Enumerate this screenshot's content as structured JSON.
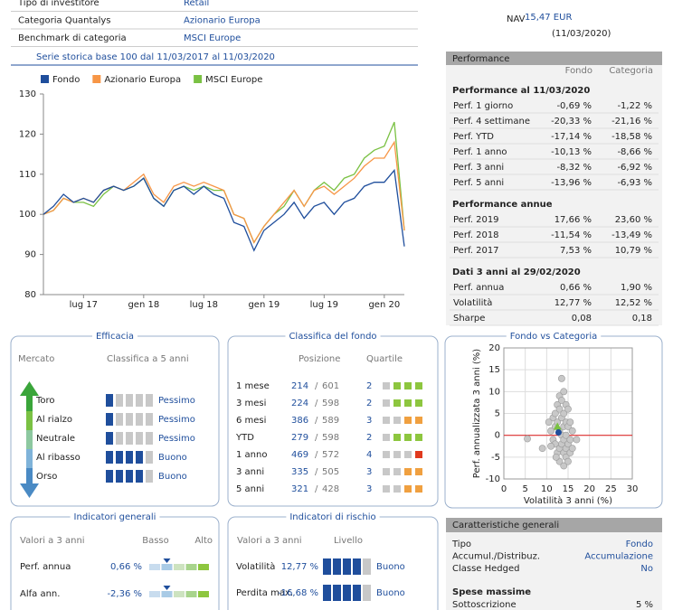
{
  "header": {
    "rows": [
      [
        "Tipo di investitore",
        "Retail"
      ],
      [
        "Categoria Quantalys",
        "Azionario Europa"
      ],
      [
        "Benchmark di categoria",
        "MSCI Europe"
      ]
    ],
    "nav_label": "NAV",
    "nav_value": "15,47 EUR",
    "nav_date": "(11/03/2020)"
  },
  "chart_data": [
    {
      "type": "line",
      "title": "Serie storica base 100 dal 11/03/2017 al 11/03/2020",
      "categories": [
        null,
        null,
        null,
        null,
        "lug 17",
        null,
        null,
        null,
        null,
        null,
        "gen 18",
        null,
        null,
        null,
        null,
        null,
        "lug 18",
        null,
        null,
        null,
        null,
        null,
        "gen 19",
        null,
        null,
        null,
        null,
        null,
        "lug 19",
        null,
        null,
        null,
        null,
        null,
        "gen 20",
        null,
        null
      ],
      "series": [
        {
          "name": "Fondo",
          "color": "#1f4e9c",
          "values": [
            100,
            102,
            105,
            103,
            104,
            103,
            106,
            107,
            106,
            107,
            109,
            104,
            102,
            106,
            107,
            105,
            107,
            105,
            104,
            98,
            97,
            91,
            96,
            98,
            100,
            103,
            99,
            102,
            103,
            100,
            103,
            104,
            107,
            108,
            108,
            111,
            92
          ]
        },
        {
          "name": "Azionario Europa",
          "color": "#f79646",
          "values": [
            100,
            101,
            104,
            103,
            104,
            103,
            106,
            107,
            106,
            108,
            110,
            105,
            103,
            107,
            108,
            107,
            108,
            107,
            106,
            100,
            99,
            93,
            97,
            100,
            103,
            106,
            102,
            106,
            107,
            105,
            107,
            109,
            112,
            114,
            114,
            118,
            96
          ]
        },
        {
          "name": "MSCI Europe",
          "color": "#7ac143",
          "values": [
            100,
            101,
            104,
            103,
            103,
            102,
            105,
            107,
            106,
            107,
            109,
            104,
            102,
            106,
            107,
            106,
            107,
            106,
            106,
            100,
            99,
            93,
            97,
            100,
            102,
            106,
            102,
            106,
            108,
            106,
            109,
            110,
            114,
            116,
            117,
            123,
            96
          ]
        }
      ],
      "ylim": [
        80,
        130
      ],
      "yticks": [
        80,
        90,
        100,
        110,
        120,
        130
      ],
      "grid": false
    },
    {
      "type": "scatter",
      "title": "Fondo vs Categoria",
      "xlabel": "Volatilità 3 anni (%)",
      "ylabel": "Perf. annualizzata 3 anni (%)",
      "x": [
        5.5,
        9,
        11,
        11.5,
        11.5,
        12,
        12,
        12,
        12.5,
        12.5,
        12.5,
        13,
        13,
        13,
        13,
        13,
        13.5,
        13.5,
        13.5,
        13.5,
        13.5,
        14,
        14,
        14,
        14,
        14,
        14,
        14.5,
        14.5,
        14.5,
        14.5,
        14.5,
        15,
        15,
        15,
        15,
        15.5,
        15.5,
        15.5,
        16,
        16,
        17,
        12.2,
        11,
        10.5
      ],
      "y": [
        -0.8,
        -3,
        1,
        4,
        -1,
        5,
        2,
        -2,
        7,
        3,
        -4,
        9,
        6,
        1,
        -3,
        -6,
        13,
        8,
        4,
        0,
        -2,
        10,
        5,
        2,
        -1,
        -4,
        -7,
        7,
        3,
        0,
        -3,
        -5,
        6,
        2,
        -2,
        -6,
        3,
        -1,
        -4,
        1,
        -3,
        -1,
        -5,
        -2.5,
        3
      ],
      "color": "#c8c8c8",
      "category": {
        "x": 12.52,
        "y": 1.9,
        "color": "#7ac143"
      },
      "fund": {
        "x": 12.77,
        "y": 0.66,
        "color": "#1f4e9c"
      },
      "reference_y": 0,
      "reference_color": "#e03030",
      "xlim": [
        0,
        30
      ],
      "xticks": [
        0,
        5,
        10,
        15,
        20,
        25,
        30
      ],
      "ylim": [
        -10,
        20
      ],
      "yticks": [
        -10,
        -5,
        0,
        5,
        10,
        15,
        20
      ],
      "grid": true
    }
  ],
  "performance": {
    "title": "Performance",
    "columns": [
      "Fondo",
      "Categoria"
    ],
    "sections": [
      {
        "heading": "Performance al 11/03/2020",
        "signed": true,
        "rows": [
          [
            "Perf. 1 giorno",
            "-0,69 %",
            "-1,22 %"
          ],
          [
            "Perf. 4 settimane",
            "-20,33 %",
            "-21,16 %"
          ],
          [
            "Perf. YTD",
            "-17,14 %",
            "-18,58 %"
          ],
          [
            "Perf. 1 anno",
            "-10,13 %",
            "-8,66 %"
          ],
          [
            "Perf. 3 anni",
            "-8,32 %",
            "-6,92 %"
          ],
          [
            "Perf. 5 anni",
            "-13,96 %",
            "-6,93 %"
          ]
        ]
      },
      {
        "heading": "Performance annue",
        "signed": true,
        "rows": [
          [
            "Perf. 2019",
            "17,66 %",
            "23,60 %"
          ],
          [
            "Perf. 2018",
            "-11,54 %",
            "-13,49 %"
          ],
          [
            "Perf. 2017",
            "7,53 %",
            "10,79 %"
          ]
        ]
      },
      {
        "heading": "Dati 3 anni al 29/02/2020",
        "signed": false,
        "rows": [
          [
            "Perf. annua",
            "0,66 %",
            "1,90 %"
          ],
          [
            "Volatilità",
            "12,77 %",
            "12,52 %"
          ],
          [
            "Sharpe",
            "0,08",
            "0,18"
          ]
        ]
      }
    ]
  },
  "efficacia": {
    "title": "Efficacia",
    "heads": [
      "Mercato",
      "Classifica a 5 anni"
    ],
    "rows": [
      {
        "market": "Toro",
        "score": 1,
        "rating": "Pessimo"
      },
      {
        "market": "Al rialzo",
        "score": 1,
        "rating": "Pessimo"
      },
      {
        "market": "Neutrale",
        "score": 1,
        "rating": "Pessimo"
      },
      {
        "market": "Al ribasso",
        "score": 4,
        "rating": "Buono"
      },
      {
        "market": "Orso",
        "score": 4,
        "rating": "Buono"
      }
    ]
  },
  "classifica": {
    "title": "Classifica del fondo",
    "heads": [
      "Posizione",
      "Quartile"
    ],
    "separator": "/",
    "rows": [
      {
        "period": "1 mese",
        "position": 214,
        "total": 601,
        "quartile": 2
      },
      {
        "period": "3 mesi",
        "position": 224,
        "total": 598,
        "quartile": 2
      },
      {
        "period": "6 mesi",
        "position": 386,
        "total": 589,
        "quartile": 3
      },
      {
        "period": "YTD",
        "position": 279,
        "total": 598,
        "quartile": 2
      },
      {
        "period": "1 anno",
        "position": 469,
        "total": 572,
        "quartile": 4
      },
      {
        "period": "3 anni",
        "position": 335,
        "total": 505,
        "quartile": 3
      },
      {
        "period": "5 anni",
        "position": 321,
        "total": 428,
        "quartile": 3
      }
    ]
  },
  "indicatori_generali": {
    "title": "Indicatori generali",
    "subtitle": "Valori a 3 anni",
    "low": "Basso",
    "high": "Alto",
    "rows": [
      {
        "label": "Perf. annua",
        "value": "0,66 %",
        "level": 2
      },
      {
        "label": "Alfa ann.",
        "value": "-2,36 %",
        "level": 2
      }
    ]
  },
  "indicatori_rischio": {
    "title": "Indicatori di rischio",
    "subtitle": "Valori a 3 anni",
    "level_head": "Livello",
    "rows": [
      {
        "label": "Volatilità",
        "value": "12,77 %",
        "level": 4,
        "rating": "Buono"
      },
      {
        "label": "Perdita max.",
        "value": "-16,68 %",
        "level": 4,
        "rating": "Buono"
      }
    ]
  },
  "caratteristiche": {
    "title": "Caratteristiche generali",
    "rows": [
      [
        "Tipo",
        "Fondo"
      ],
      [
        "Accumul./Distribuz.",
        "Accumulazione"
      ],
      [
        "Classe Hedged",
        "No"
      ]
    ],
    "section": "Spese massime",
    "section_rows": [
      [
        "Sottoscrizione",
        "5 %"
      ]
    ]
  }
}
